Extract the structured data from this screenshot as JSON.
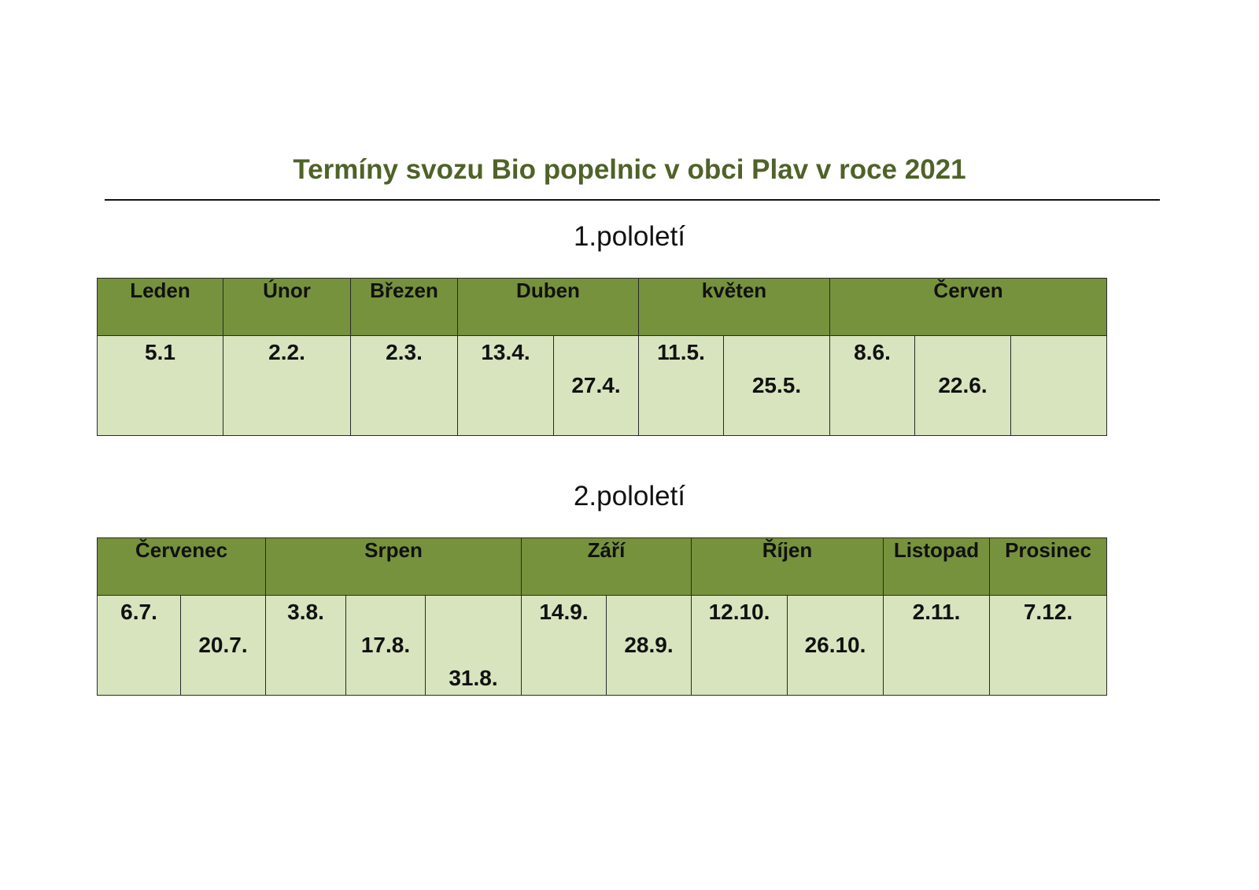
{
  "title": "Termíny svozu Bio popelnic v obci Plav v roce 2021",
  "half1": {
    "heading": "1.pololetí",
    "months": [
      "Leden",
      "Únor",
      "Březen",
      "Duben",
      "květen",
      "Červen"
    ],
    "dates": [
      "5.1",
      "2.2.",
      "2.3.",
      "13.4.",
      "27.4.",
      "11.5.",
      "25.5.",
      "8.6.",
      "22.6.",
      ""
    ]
  },
  "half2": {
    "heading": "2.pololetí",
    "months": [
      "Červenec",
      "Srpen",
      "Září",
      "Říjen",
      "Listopad",
      "Prosinec"
    ],
    "dates": [
      "6.7.",
      "20.7.",
      "3.8.",
      "17.8.",
      "31.8.",
      "14.9.",
      "28.9.",
      "12.10.",
      "26.10.",
      "2.11.",
      "7.12."
    ]
  },
  "colors": {
    "title": "#4f6228",
    "header_fill": "#76923c",
    "cell_fill": "#d7e4bd",
    "border": "#2a2a2a"
  }
}
